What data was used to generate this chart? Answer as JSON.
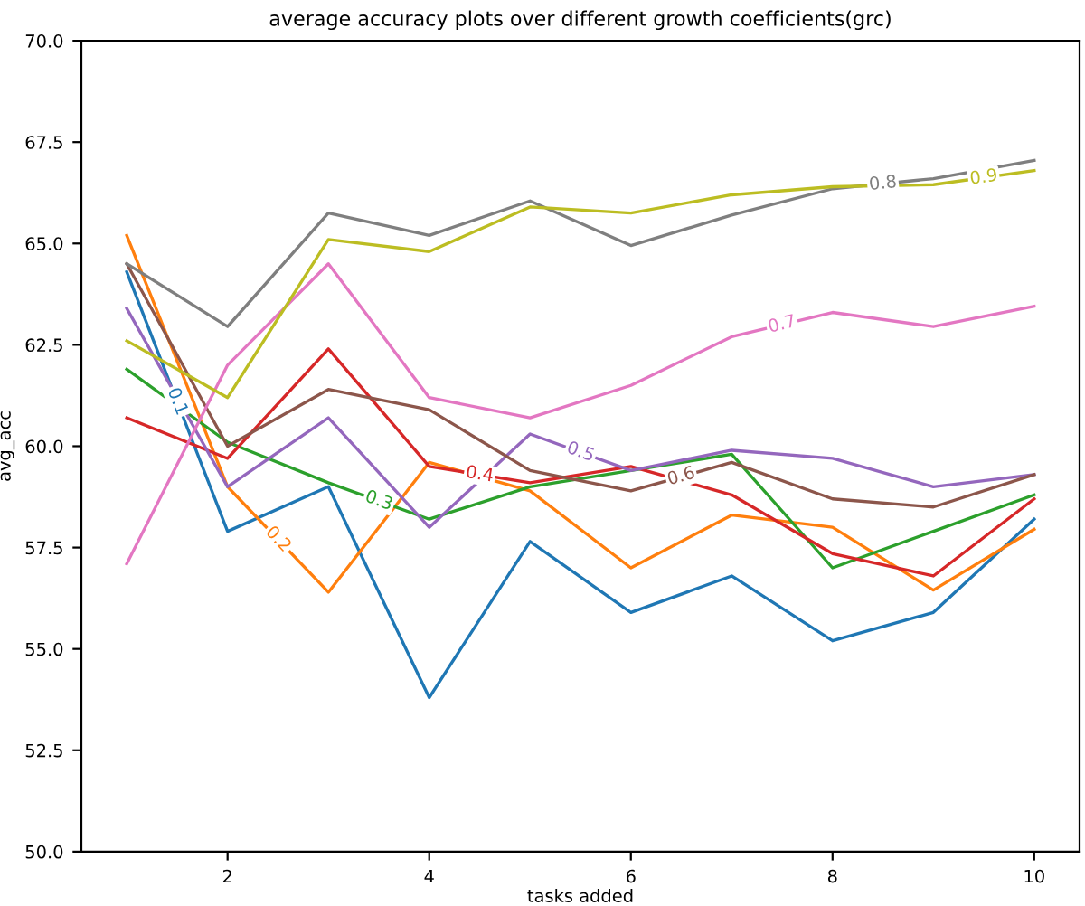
{
  "chart_data": {
    "type": "line",
    "title": "average accuracy plots over different growth coefficients(grc)",
    "xlabel": "tasks added",
    "ylabel": "avg_acc",
    "x": [
      1,
      2,
      3,
      4,
      5,
      6,
      7,
      8,
      9,
      10
    ],
    "xlim": [
      0.55,
      10.45
    ],
    "xticks": [
      2,
      4,
      6,
      8,
      10
    ],
    "ylim": [
      50,
      70
    ],
    "yticks": [
      {
        "value": 50,
        "label": "50.0"
      },
      {
        "value": 52.5,
        "label": "52.5"
      },
      {
        "value": 55,
        "label": "55.0"
      },
      {
        "value": 57.5,
        "label": "57.5"
      },
      {
        "value": 60,
        "label": "60.0"
      },
      {
        "value": 62.5,
        "label": "62.5"
      },
      {
        "value": 65,
        "label": "65.0"
      },
      {
        "value": 67.5,
        "label": "67.5"
      },
      {
        "value": 70,
        "label": "70.0"
      }
    ],
    "grid": false,
    "legend": false,
    "marker": "none",
    "line_style": "solid",
    "series": [
      {
        "name": "0.1",
        "color": "#1f77b4",
        "values": [
          64.3,
          57.9,
          59.0,
          53.8,
          57.65,
          55.9,
          56.8,
          55.2,
          55.9,
          58.2
        ]
      },
      {
        "name": "0.2",
        "color": "#ff7f0e",
        "values": [
          65.2,
          59.0,
          56.4,
          59.6,
          58.9,
          57.0,
          58.3,
          58.0,
          56.45,
          57.95
        ]
      },
      {
        "name": "0.3",
        "color": "#2ca02c",
        "values": [
          61.9,
          60.1,
          59.1,
          58.2,
          59.0,
          59.4,
          59.8,
          57.0,
          57.9,
          58.8
        ]
      },
      {
        "name": "0.4",
        "color": "#d62728",
        "values": [
          60.7,
          59.7,
          62.4,
          59.5,
          59.1,
          59.5,
          58.8,
          57.35,
          56.8,
          58.7
        ]
      },
      {
        "name": "0.5",
        "color": "#9467bd",
        "values": [
          63.4,
          59.0,
          60.7,
          58.0,
          60.3,
          59.4,
          59.9,
          59.7,
          59.0,
          59.3
        ]
      },
      {
        "name": "0.6",
        "color": "#8c564b",
        "values": [
          64.5,
          60.0,
          61.4,
          60.9,
          59.4,
          58.9,
          59.6,
          58.7,
          58.5,
          59.3
        ]
      },
      {
        "name": "0.7",
        "color": "#e377c2",
        "values": [
          57.1,
          62.0,
          64.5,
          61.2,
          60.7,
          61.5,
          62.7,
          63.3,
          62.95,
          63.45
        ]
      },
      {
        "name": "0.8",
        "color": "#7f7f7f",
        "values": [
          64.5,
          62.95,
          65.75,
          65.2,
          66.05,
          64.95,
          65.7,
          66.35,
          66.6,
          67.05
        ]
      },
      {
        "name": "0.9",
        "color": "#bcbd22",
        "values": [
          62.6,
          61.2,
          65.1,
          64.8,
          65.9,
          65.75,
          66.2,
          66.4,
          66.45,
          66.8
        ]
      }
    ]
  }
}
